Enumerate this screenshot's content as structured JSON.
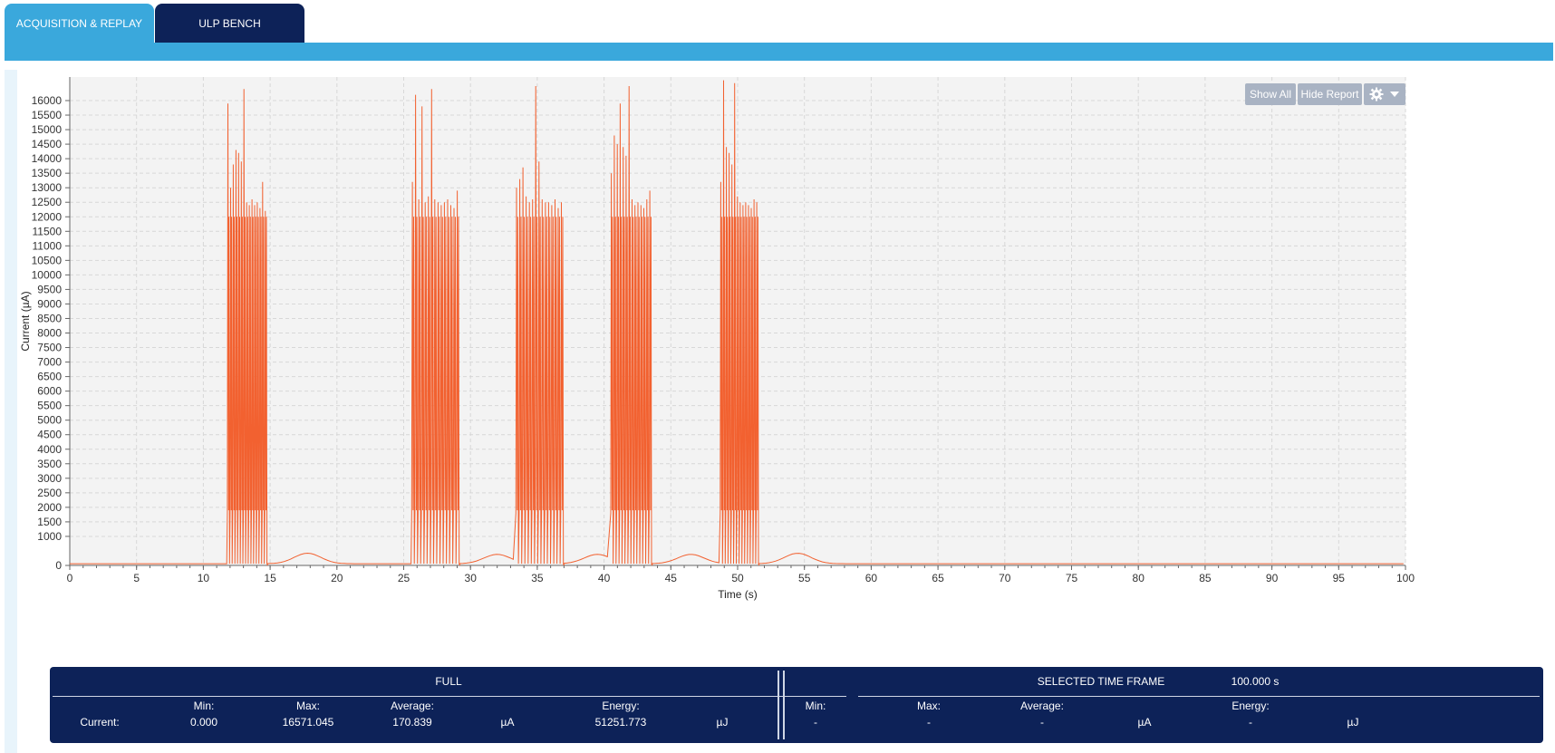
{
  "tabs": [
    {
      "label": "ACQUISITION & REPLAY",
      "active": true
    },
    {
      "label": "ULP BENCH",
      "active": false
    }
  ],
  "toolbar": {
    "show_all_label": "Show All",
    "hide_report_label": "Hide Report",
    "settings_icon": "gear-icon",
    "dropdown_icon": "caret-down-icon"
  },
  "colors": {
    "accent": "#3aa8dc",
    "nav_dark": "#0d2258",
    "trace": "#f26130"
  },
  "chart_data": {
    "type": "line",
    "xlabel": "Time (s)",
    "ylabel": "Current (µA)",
    "xlim": [
      0,
      100
    ],
    "ylim": [
      0,
      16000
    ],
    "x_ticks": [
      0,
      5,
      10,
      15,
      20,
      25,
      30,
      35,
      40,
      45,
      50,
      55,
      60,
      65,
      70,
      75,
      80,
      85,
      90,
      95,
      100
    ],
    "y_ticks": [
      0,
      1000,
      1500,
      2000,
      2500,
      3000,
      3500,
      4000,
      4500,
      5000,
      5500,
      6000,
      6500,
      7000,
      7500,
      8000,
      8500,
      9000,
      9500,
      10000,
      10500,
      11000,
      11500,
      12000,
      12500,
      13000,
      13500,
      14000,
      14500,
      15000,
      15500,
      16000
    ],
    "grid": true,
    "series": [
      {
        "color": "#f26130",
        "baseline_uA": 60,
        "bursts": [
          {
            "start": 11.8,
            "end": 14.8,
            "peaks": [
              15900,
              13000,
              13800,
              14300,
              14200,
              13900,
              16400,
              12500,
              12400,
              12600,
              12400,
              12500,
              12300,
              13200,
              12200
            ]
          },
          {
            "start": 25.6,
            "end": 29.2,
            "peaks": [
              13200,
              16200,
              12600,
              15800,
              12500,
              12700,
              16400,
              12600,
              12500,
              12400,
              12500,
              12600,
              12400,
              12300,
              12900
            ]
          },
          {
            "start": 33.4,
            "end": 37.0,
            "peaks": [
              13000,
              13300,
              13700,
              12700,
              12500,
              12600,
              16500,
              13900,
              12600,
              12500,
              12500,
              12400,
              12600,
              12300,
              12500
            ]
          },
          {
            "start": 40.5,
            "end": 43.6,
            "peaks": [
              13500,
              14800,
              14500,
              15900,
              14400,
              14100,
              16500,
              12600,
              12400,
              12500,
              12400,
              12300,
              12600,
              12900
            ]
          },
          {
            "start": 48.7,
            "end": 51.6,
            "peaks": [
              13200,
              16700,
              14400,
              14200,
              13800,
              16600,
              12700,
              12500,
              12400,
              12500,
              12400,
              12300,
              12600,
              12500
            ]
          }
        ],
        "bumps": [
          {
            "center": 17.8,
            "peak_uA": 420
          },
          {
            "center": 32.0,
            "peak_uA": 380
          },
          {
            "center": 39.5,
            "peak_uA": 380
          },
          {
            "center": 46.5,
            "peak_uA": 380
          },
          {
            "center": 54.5,
            "peak_uA": 420
          }
        ]
      }
    ]
  },
  "report": {
    "full_title": "FULL",
    "selected_title": "SELECTED TIME FRAME",
    "selected_duration": "100.000 s",
    "row_label": "Current:",
    "min_label": "Min:",
    "max_label": "Max:",
    "avg_label": "Average:",
    "energy_label": "Energy:",
    "current_unit": "µA",
    "energy_unit": "µJ",
    "full": {
      "min": "0.000",
      "max": "16571.045",
      "avg": "170.839",
      "energy": "51251.773"
    },
    "selected": {
      "min": "-",
      "max": "-",
      "avg": "-",
      "energy": "-"
    }
  }
}
